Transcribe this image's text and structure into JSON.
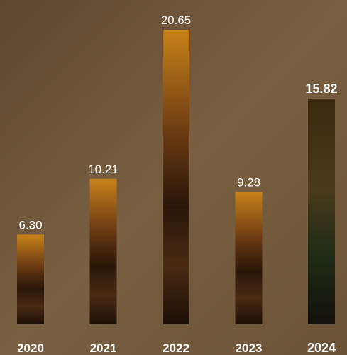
{
  "chart_data": {
    "type": "bar",
    "categories": [
      "2020",
      "2021",
      "2022",
      "2023",
      "2024"
    ],
    "values": [
      6.3,
      10.21,
      20.65,
      9.28,
      15.82
    ],
    "value_labels": [
      "6.30",
      "10.21",
      "20.65",
      "9.28",
      "15.82"
    ]
  }
}
